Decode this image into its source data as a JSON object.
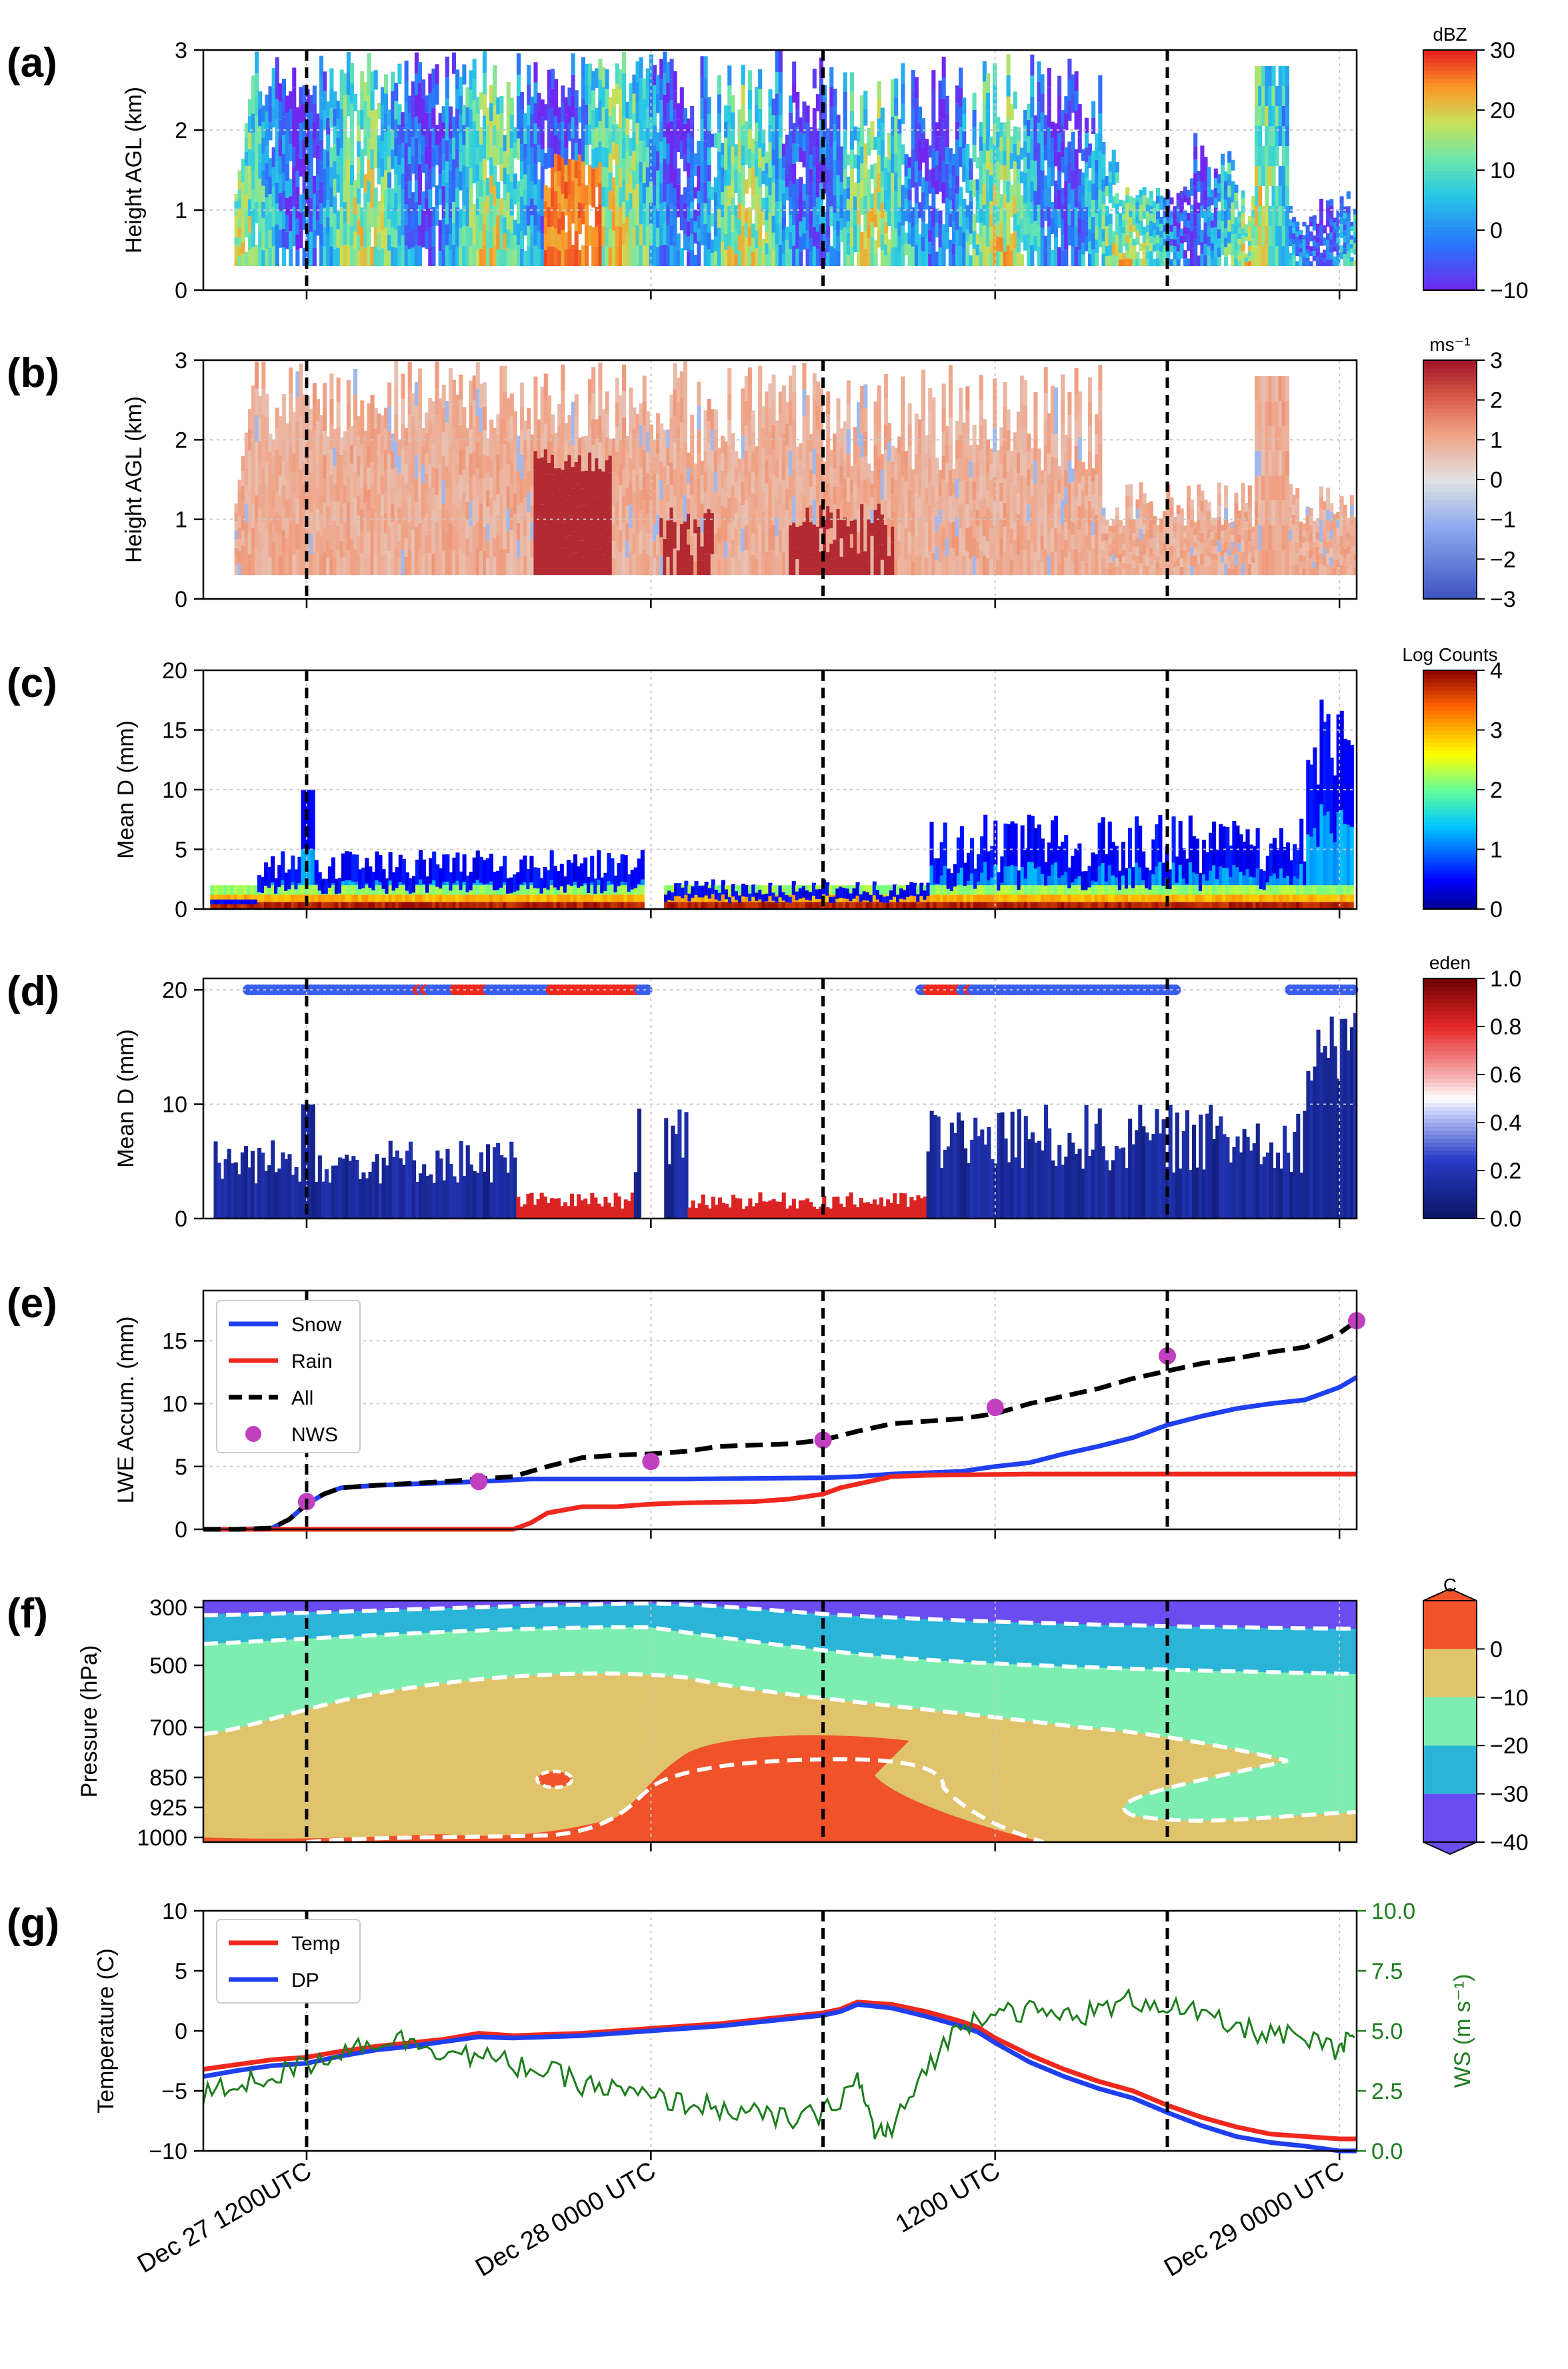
{
  "chart_data": [
    {
      "panel_label": "(a)",
      "type": "heatmap",
      "description_var": "radar reflectivity",
      "ylabel": "Height AGL (km)",
      "ylim": [
        0,
        3
      ],
      "yticks": [
        "0",
        "1",
        "2",
        "3"
      ],
      "colorbar": {
        "label": "dBZ",
        "range": [
          -10,
          30
        ],
        "ticks": [
          "30",
          "20",
          "10",
          "0",
          "−10"
        ]
      },
      "vlines_hours_from_start": [
        3,
        18,
        28
      ]
    },
    {
      "panel_label": "(b)",
      "type": "heatmap",
      "ylabel": "Height AGL (km)",
      "ylim": [
        0,
        3
      ],
      "yticks": [
        "0",
        "1",
        "2",
        "3"
      ],
      "colorbar": {
        "label": "ms⁻¹",
        "range": [
          -3,
          3
        ],
        "ticks": [
          "3",
          "2",
          "1",
          "0",
          "−1",
          "−2",
          "−3"
        ]
      },
      "vlines_hours_from_start": [
        3,
        18,
        28
      ]
    },
    {
      "panel_label": "(c)",
      "type": "heatmap",
      "ylabel": "Mean D (mm)",
      "ylim": [
        0,
        20
      ],
      "yticks": [
        "0",
        "5",
        "10",
        "15",
        "20"
      ],
      "colorbar": {
        "label": "Log Counts",
        "range": [
          0,
          4
        ],
        "ticks": [
          "4",
          "3",
          "2",
          "1",
          "0"
        ]
      },
      "vlines_hours_from_start": [
        3,
        18,
        28
      ]
    },
    {
      "panel_label": "(d)",
      "type": "scatter",
      "ylabel": "Mean D (mm)",
      "ylim": [
        0,
        21
      ],
      "yticks": [
        "0",
        "10",
        "20"
      ],
      "colorbar": {
        "label": "eden",
        "range": [
          0,
          1
        ],
        "ticks": [
          "1.0",
          "0.8",
          "0.6",
          "0.4",
          "0.2",
          "0.0"
        ]
      },
      "vlines_hours_from_start": [
        3,
        18,
        28
      ]
    },
    {
      "panel_label": "(e)",
      "type": "line",
      "ylabel": "LWE Accum. (mm)",
      "ylim": [
        0,
        19
      ],
      "yticks": [
        "0",
        "5",
        "10",
        "15"
      ],
      "legend": [
        "Snow",
        "Rain",
        "All",
        "NWS"
      ],
      "series": [
        {
          "name": "Snow",
          "color": "#1f3ff0",
          "x": [
            0,
            1,
            2,
            2.5,
            3,
            3.5,
            4,
            5,
            8,
            9.5,
            12,
            12.5,
            14,
            18,
            19,
            20,
            21,
            22,
            23,
            24,
            25,
            26,
            27,
            28,
            29,
            30,
            31,
            32,
            33,
            33.5
          ],
          "y": [
            0,
            0,
            0.1,
            0.8,
            2.0,
            2.8,
            3.3,
            3.5,
            3.8,
            4.0,
            4.0,
            4.0,
            4.0,
            4.1,
            4.2,
            4.4,
            4.5,
            4.6,
            5.0,
            5.3,
            6.0,
            6.6,
            7.3,
            8.3,
            9.0,
            9.6,
            10.0,
            10.3,
            11.3,
            12.1
          ]
        },
        {
          "name": "Rain",
          "color": "#f0281e",
          "x": [
            0,
            3,
            6,
            9,
            9.5,
            10,
            11,
            12,
            13,
            14,
            16,
            17,
            18,
            18.5,
            19,
            20,
            21,
            24,
            27,
            30,
            33.5
          ],
          "y": [
            0,
            0,
            0,
            0,
            0.5,
            1.3,
            1.8,
            1.8,
            2.0,
            2.1,
            2.2,
            2.4,
            2.8,
            3.3,
            3.6,
            4.2,
            4.3,
            4.4,
            4.4,
            4.4,
            4.4
          ]
        },
        {
          "name": "All",
          "color": "#000000",
          "x": [
            0,
            1,
            2,
            2.5,
            3,
            3.5,
            4,
            5,
            7,
            8,
            9,
            10,
            11,
            12,
            13,
            14,
            15,
            16,
            17,
            18,
            19,
            20,
            21,
            22,
            23,
            24,
            25,
            26,
            27,
            28,
            29,
            30,
            31,
            32,
            33,
            33.5
          ],
          "y": [
            0,
            0,
            0.1,
            0.8,
            2.0,
            2.8,
            3.3,
            3.5,
            3.8,
            4.0,
            4.2,
            5.0,
            5.7,
            5.9,
            6.0,
            6.2,
            6.6,
            6.7,
            6.8,
            7.1,
            7.8,
            8.4,
            8.6,
            8.8,
            9.2,
            10.0,
            10.6,
            11.2,
            12.0,
            12.6,
            13.2,
            13.6,
            14.1,
            14.5,
            15.6,
            16.6
          ]
        },
        {
          "name": "NWS",
          "color": "#c040c0",
          "marker": "circle",
          "x": [
            3,
            8,
            13,
            18,
            23,
            28,
            33.5
          ],
          "y": [
            2.2,
            3.8,
            5.4,
            7.1,
            9.7,
            13.8,
            16.6
          ]
        }
      ],
      "vlines_hours_from_start": [
        3,
        18,
        28
      ]
    },
    {
      "panel_label": "(f)",
      "type": "heatmap",
      "ylabel": "Pressure (hPa)",
      "yticks": [
        "300",
        "500",
        "700",
        "850",
        "925",
        "1000"
      ],
      "colorbar": {
        "label": "C",
        "range": [
          -40,
          10
        ],
        "ticks": [
          "0",
          "−10",
          "−20",
          "−30",
          "−40"
        ],
        "levels": [
          -40,
          -30,
          -20,
          -10,
          0,
          10
        ]
      },
      "vlines_hours_from_start": [
        3,
        18,
        28
      ]
    },
    {
      "panel_label": "(g)",
      "type": "line",
      "ylabel": "Temperature (C)",
      "ylim": [
        -10,
        10
      ],
      "yticks": [
        "−10",
        "−5",
        "0",
        "5",
        "10"
      ],
      "y2label": "WS (m s⁻¹)",
      "y2lim": [
        0,
        10
      ],
      "y2ticks": [
        "0.0",
        "2.5",
        "5.0",
        "7.5",
        "10.0"
      ],
      "legend": [
        "Temp",
        "DP"
      ],
      "series": [
        {
          "name": "Temp",
          "color": "#f0281e",
          "x": [
            0,
            1,
            2,
            3,
            4,
            5,
            6,
            7,
            8,
            9,
            10,
            11,
            12,
            13,
            14,
            15,
            16,
            17,
            18,
            18.5,
            19,
            20,
            21,
            22,
            22.5,
            23,
            24,
            25,
            26,
            27,
            28,
            29,
            30,
            31,
            32,
            33,
            33.5
          ],
          "y": [
            -3.2,
            -2.8,
            -2.4,
            -2.2,
            -1.7,
            -1.3,
            -1.0,
            -0.7,
            -0.2,
            -0.4,
            -0.3,
            -0.2,
            0.0,
            0.2,
            0.4,
            0.6,
            0.9,
            1.2,
            1.5,
            1.8,
            2.4,
            2.2,
            1.6,
            0.8,
            0.3,
            -0.6,
            -2.0,
            -3.2,
            -4.2,
            -5.0,
            -6.2,
            -7.2,
            -8.0,
            -8.6,
            -8.8,
            -9.0,
            -9.0
          ]
        },
        {
          "name": "DP",
          "color": "#1f3ff0",
          "x": [
            0,
            1,
            2,
            3,
            4,
            5,
            6,
            7,
            8,
            9,
            10,
            11,
            12,
            13,
            14,
            15,
            16,
            17,
            18,
            18.5,
            19,
            20,
            21,
            22,
            22.5,
            23,
            24,
            25,
            26,
            27,
            28,
            29,
            30,
            31,
            32,
            33,
            33.5
          ],
          "y": [
            -3.8,
            -3.3,
            -2.9,
            -2.7,
            -2.1,
            -1.6,
            -1.3,
            -0.9,
            -0.5,
            -0.6,
            -0.5,
            -0.4,
            -0.2,
            0.0,
            0.2,
            0.4,
            0.7,
            1.0,
            1.3,
            1.6,
            2.2,
            1.9,
            1.2,
            0.4,
            -0.1,
            -1.0,
            -2.6,
            -3.8,
            -4.8,
            -5.6,
            -6.8,
            -7.9,
            -8.8,
            -9.3,
            -9.6,
            -10.0,
            -10.0
          ]
        },
        {
          "name": "WS",
          "axis": "right",
          "color": "#1e7d1e",
          "x": [
            0,
            1,
            2,
            3,
            4,
            5,
            6,
            7,
            8,
            9,
            10,
            11,
            12,
            13,
            14,
            15,
            16,
            17,
            18,
            19,
            19.5,
            20,
            21,
            22,
            23,
            24,
            25,
            26,
            27,
            28,
            29,
            30,
            31,
            32,
            33,
            33.5
          ],
          "y": [
            2.3,
            2.8,
            3.1,
            3.6,
            4.2,
            4.6,
            4.6,
            4.2,
            3.9,
            3.6,
            3.3,
            2.8,
            2.5,
            2.2,
            2.0,
            1.8,
            1.5,
            1.3,
            1.5,
            3.0,
            0.8,
            0.8,
            3.5,
            5.2,
            6.0,
            5.8,
            5.6,
            5.8,
            6.3,
            6.1,
            5.6,
            5.1,
            4.9,
            4.6,
            4.1,
            5.0
          ]
        }
      ],
      "vlines_hours_from_start": [
        3,
        18,
        28
      ]
    }
  ],
  "x_axis": {
    "range_hours": [
      0,
      33.5
    ],
    "tick_hours": [
      3,
      13,
      23,
      33
    ],
    "tick_labels": [
      "Dec 27 1200UTC",
      "Dec 28 0000 UTC",
      "1200 UTC",
      "Dec 29 0000 UTC"
    ]
  },
  "panel_labels": [
    "(a)",
    "(b)",
    "(c)",
    "(d)",
    "(e)",
    "(f)",
    "(g)"
  ],
  "colors": {
    "snow": "#1f3ff0",
    "rain": "#f0281e",
    "all": "#000000",
    "nws": "#c040c0",
    "ws": "#1e7d1e"
  }
}
